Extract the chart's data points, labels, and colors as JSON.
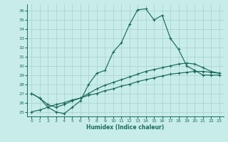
{
  "xlabel": "Humidex (Indice chaleur)",
  "bg_color": "#c8ede9",
  "line_color": "#1a6b5a",
  "grid_color": "#a8cfc8",
  "xlim": [
    -0.5,
    23.5
  ],
  "ylim": [
    24.5,
    36.7
  ],
  "yticks": [
    25,
    26,
    27,
    28,
    29,
    30,
    31,
    32,
    33,
    34,
    35,
    36
  ],
  "xticks": [
    0,
    1,
    2,
    3,
    4,
    5,
    6,
    7,
    8,
    9,
    10,
    11,
    12,
    13,
    14,
    15,
    16,
    17,
    18,
    19,
    20,
    21,
    22,
    23
  ],
  "curve_main": [
    27.0,
    26.5,
    25.5,
    25.0,
    24.8,
    25.5,
    26.2,
    28.0,
    29.2,
    29.5,
    31.5,
    32.5,
    34.5,
    36.1,
    36.2,
    35.0,
    35.5,
    33.0,
    31.8,
    30.0,
    29.5,
    29.0,
    29.0,
    29.0
  ],
  "curve_upper": [
    27.0,
    26.5,
    25.8,
    25.5,
    25.8,
    26.2,
    26.5,
    27.0,
    27.5,
    27.9,
    28.2,
    28.5,
    28.8,
    29.1,
    29.4,
    29.6,
    29.8,
    30.0,
    30.2,
    30.3,
    30.2,
    29.8,
    29.4,
    29.2
  ],
  "curve_lower": [
    25.0,
    25.2,
    25.5,
    25.8,
    26.0,
    26.3,
    26.5,
    26.8,
    27.0,
    27.3,
    27.5,
    27.8,
    28.0,
    28.3,
    28.5,
    28.7,
    28.9,
    29.1,
    29.2,
    29.3,
    29.4,
    29.4,
    29.3,
    29.2
  ]
}
